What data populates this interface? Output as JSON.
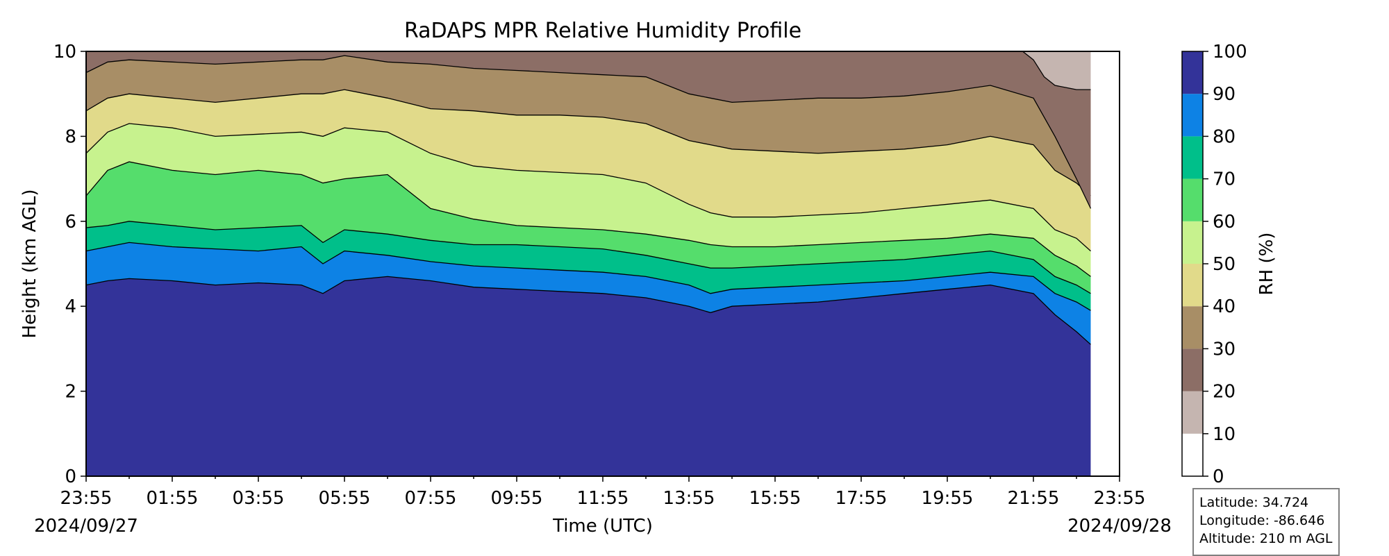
{
  "chart_data": {
    "type": "heatmap",
    "title": "RaDAPS MPR Relative Humidity Profile",
    "xlabel": "Time (UTC)",
    "ylabel": "Height (km AGL)",
    "xticks": [
      "23:55",
      "01:55",
      "03:55",
      "05:55",
      "07:55",
      "09:55",
      "11:55",
      "13:55",
      "15:55",
      "17:55",
      "19:55",
      "21:55",
      "23:55"
    ],
    "x_dates": {
      "start": "2024/09/27",
      "end": "2024/09/28"
    },
    "xlim_hours": [
      0,
      24
    ],
    "data_end_hour": 23.33,
    "ylim": [
      0,
      10
    ],
    "yticks": [
      0,
      2,
      4,
      6,
      8,
      10
    ],
    "grid": false,
    "colorbar": {
      "label": "RH (%)",
      "ticks": [
        0,
        10,
        20,
        30,
        40,
        50,
        60,
        70,
        80,
        90,
        100
      ],
      "levels": [
        0,
        10,
        20,
        30,
        40,
        50,
        60,
        70,
        80,
        90,
        100
      ],
      "colors": [
        "#ffffff",
        "#c5b5b0",
        "#8c6e66",
        "#a88e66",
        "#e1da8a",
        "#c7f28e",
        "#55dd6c",
        "#00bf8a",
        "#0d82e5",
        "#333399"
      ]
    },
    "boundaries": [
      {
        "rh": 90,
        "hours": [
          0,
          0.5,
          1,
          2,
          3,
          4,
          5,
          5.5,
          6,
          7,
          8,
          9,
          10,
          11,
          12,
          13,
          14,
          14.5,
          15,
          16,
          17,
          18,
          19,
          20,
          21,
          22,
          22.5,
          23,
          23.33
        ],
        "km": [
          4.5,
          4.6,
          4.65,
          4.6,
          4.5,
          4.55,
          4.5,
          4.3,
          4.6,
          4.7,
          4.6,
          4.45,
          4.4,
          4.35,
          4.3,
          4.2,
          4.0,
          3.85,
          4.0,
          4.05,
          4.1,
          4.2,
          4.3,
          4.4,
          4.5,
          4.3,
          3.8,
          3.4,
          3.1
        ]
      },
      {
        "rh": 80,
        "hours": [
          0,
          0.5,
          1,
          2,
          3,
          4,
          5,
          5.5,
          6,
          7,
          8,
          9,
          10,
          11,
          12,
          13,
          14,
          14.5,
          15,
          16,
          17,
          18,
          19,
          20,
          21,
          22,
          22.5,
          23,
          23.33
        ],
        "km": [
          5.3,
          5.4,
          5.5,
          5.4,
          5.35,
          5.3,
          5.4,
          5.0,
          5.3,
          5.2,
          5.05,
          4.95,
          4.9,
          4.85,
          4.8,
          4.7,
          4.5,
          4.3,
          4.4,
          4.45,
          4.5,
          4.55,
          4.6,
          4.7,
          4.8,
          4.7,
          4.3,
          4.1,
          3.9
        ]
      },
      {
        "rh": 70,
        "hours": [
          0,
          0.5,
          1,
          2,
          3,
          4,
          5,
          5.5,
          6,
          7,
          8,
          9,
          10,
          11,
          12,
          13,
          14,
          14.5,
          15,
          16,
          17,
          18,
          19,
          20,
          21,
          22,
          22.5,
          23,
          23.33
        ],
        "km": [
          5.85,
          5.9,
          6.0,
          5.9,
          5.8,
          5.85,
          5.9,
          5.5,
          5.8,
          5.7,
          5.55,
          5.45,
          5.45,
          5.4,
          5.35,
          5.2,
          5.0,
          4.9,
          4.9,
          4.95,
          5.0,
          5.05,
          5.1,
          5.2,
          5.3,
          5.1,
          4.7,
          4.5,
          4.3
        ]
      },
      {
        "rh": 60,
        "hours": [
          0,
          0.5,
          1,
          2,
          3,
          4,
          5,
          5.5,
          6,
          7,
          8,
          9,
          10,
          11,
          12,
          13,
          14,
          14.5,
          15,
          16,
          17,
          18,
          19,
          20,
          21,
          22,
          22.5,
          23,
          23.33
        ],
        "km": [
          6.6,
          7.2,
          7.4,
          7.2,
          7.1,
          7.2,
          7.1,
          6.9,
          7.0,
          7.1,
          6.3,
          6.05,
          5.9,
          5.85,
          5.8,
          5.7,
          5.55,
          5.45,
          5.4,
          5.4,
          5.45,
          5.5,
          5.55,
          5.6,
          5.7,
          5.6,
          5.2,
          4.95,
          4.7
        ]
      },
      {
        "rh": 50,
        "hours": [
          0,
          0.5,
          1,
          2,
          3,
          4,
          5,
          5.5,
          6,
          7,
          8,
          9,
          10,
          11,
          12,
          13,
          14,
          14.5,
          15,
          16,
          17,
          18,
          19,
          20,
          21,
          22,
          22.5,
          23,
          23.33
        ],
        "km": [
          7.6,
          8.1,
          8.3,
          8.2,
          8.0,
          8.05,
          8.1,
          8.0,
          8.2,
          8.1,
          7.6,
          7.3,
          7.2,
          7.15,
          7.1,
          6.9,
          6.4,
          6.2,
          6.1,
          6.1,
          6.15,
          6.2,
          6.3,
          6.4,
          6.5,
          6.3,
          5.8,
          5.6,
          5.3
        ]
      },
      {
        "rh": 40,
        "hours": [
          0,
          0.5,
          1,
          2,
          3,
          4,
          5,
          5.5,
          6,
          7,
          8,
          9,
          10,
          11,
          12,
          13,
          14,
          14.5,
          15,
          16,
          17,
          18,
          19,
          20,
          21,
          22,
          22.5,
          23,
          23.33
        ],
        "km": [
          8.6,
          8.9,
          9.0,
          8.9,
          8.8,
          8.9,
          9.0,
          9.0,
          9.1,
          8.9,
          8.65,
          8.6,
          8.5,
          8.5,
          8.45,
          8.3,
          7.9,
          7.8,
          7.7,
          7.65,
          7.6,
          7.65,
          7.7,
          7.8,
          8.0,
          7.8,
          7.2,
          6.9,
          6.6
        ]
      },
      {
        "rh": 30,
        "hours": [
          0,
          0.5,
          1,
          2,
          3,
          4,
          5,
          5.5,
          6,
          7,
          8,
          9,
          10,
          11,
          12,
          13,
          14,
          14.5,
          15,
          16,
          17,
          18,
          19,
          20,
          21,
          22,
          22.5,
          23,
          23.33
        ],
        "km": [
          9.5,
          9.75,
          9.8,
          9.75,
          9.7,
          9.75,
          9.8,
          9.8,
          9.9,
          9.75,
          9.7,
          9.6,
          9.55,
          9.5,
          9.45,
          9.4,
          9.0,
          8.9,
          8.8,
          8.85,
          8.9,
          8.9,
          8.95,
          9.05,
          9.2,
          8.9,
          8.0,
          7.0,
          6.3
        ]
      },
      {
        "rh": 20,
        "hours": [
          21.75,
          22,
          22.25,
          22.5,
          23,
          23.33
        ],
        "km": [
          10.0,
          9.8,
          9.4,
          9.2,
          9.1,
          9.1
        ]
      }
    ]
  },
  "info_box": {
    "latitude": "Latitude: 34.724",
    "longitude": "Longitude: -86.646",
    "altitude": "Altitude: 210 m AGL"
  }
}
